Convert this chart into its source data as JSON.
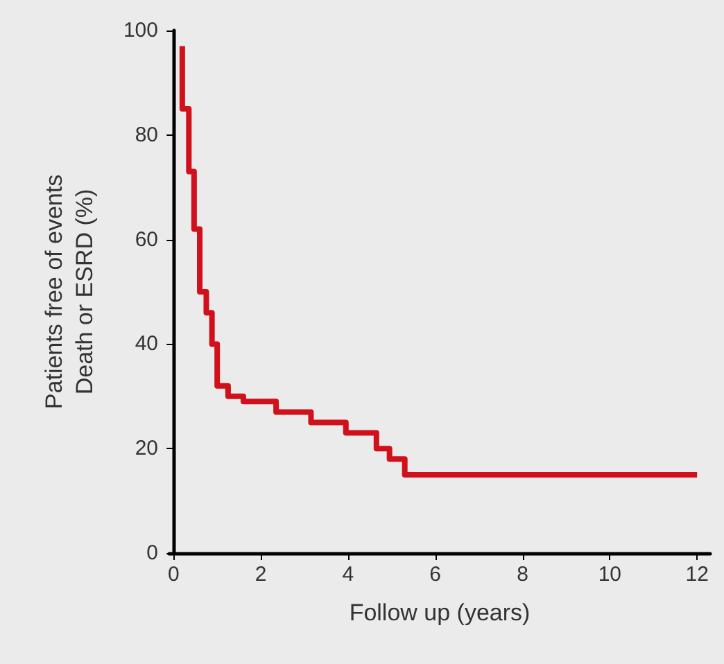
{
  "chart_data": {
    "type": "step",
    "xlabel": "Follow up (years)",
    "ylabel": "Patients free of events\nDeath or ESRD (%)",
    "xlim": [
      -0.1,
      12.3
    ],
    "xticks": [
      0,
      2,
      4,
      6,
      8,
      10,
      12
    ],
    "ylim": [
      0,
      100
    ],
    "yticks": [
      0,
      20,
      40,
      60,
      80,
      100
    ],
    "series": [
      {
        "color": "#d0111b",
        "x": [
          0.2,
          0.2,
          0.35,
          0.47,
          0.6,
          0.75,
          0.88,
          1.0,
          1.25,
          1.6,
          2.35,
          3.15,
          3.95,
          4.65,
          4.95,
          5.3,
          12
        ],
        "values": [
          97,
          85,
          73,
          62,
          50,
          46,
          40,
          32,
          30,
          29,
          27,
          25,
          23,
          20,
          18,
          15,
          15
        ]
      }
    ],
    "grid": false,
    "marker": "none",
    "line_style": "solid"
  }
}
